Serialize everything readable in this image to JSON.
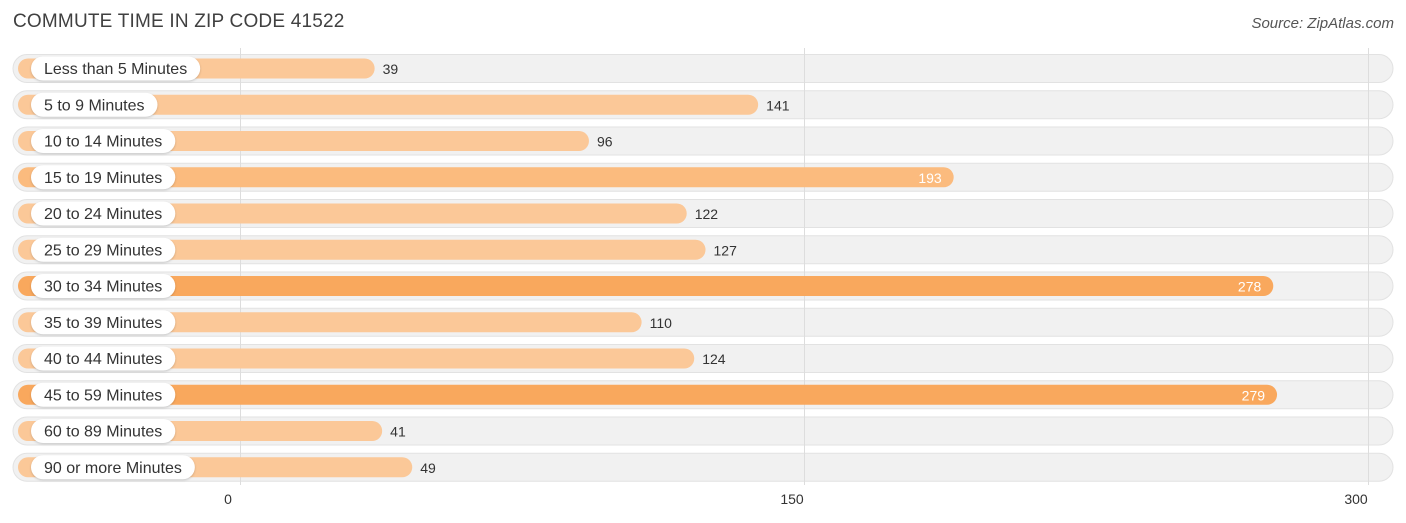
{
  "chart_data": {
    "type": "bar",
    "orientation": "horizontal",
    "title": "COMMUTE TIME IN ZIP CODE 41522",
    "source": "Source: ZipAtlas.com",
    "categories": [
      "Less than 5 Minutes",
      "5 to 9 Minutes",
      "10 to 14 Minutes",
      "15 to 19 Minutes",
      "20 to 24 Minutes",
      "25 to 29 Minutes",
      "30 to 34 Minutes",
      "35 to 39 Minutes",
      "40 to 44 Minutes",
      "45 to 59 Minutes",
      "60 to 89 Minutes",
      "90 or more Minutes"
    ],
    "values": [
      39,
      141,
      96,
      193,
      122,
      127,
      278,
      110,
      124,
      279,
      41,
      49
    ],
    "xlim": [
      0,
      300
    ],
    "xticks": [
      0,
      150,
      300
    ],
    "xlabel": "",
    "ylabel": "",
    "grid": true,
    "colors": {
      "bar_light": "#fbc898",
      "bar_mid": "#fbbb7e",
      "bar_strong": "#f9a85d",
      "track": "#f1f1f1",
      "track_border": "#e2e2e2",
      "label_pill": "#ffffff",
      "text": "#333333",
      "value_inside": "#ffffff",
      "grid": "#dddddd"
    }
  }
}
